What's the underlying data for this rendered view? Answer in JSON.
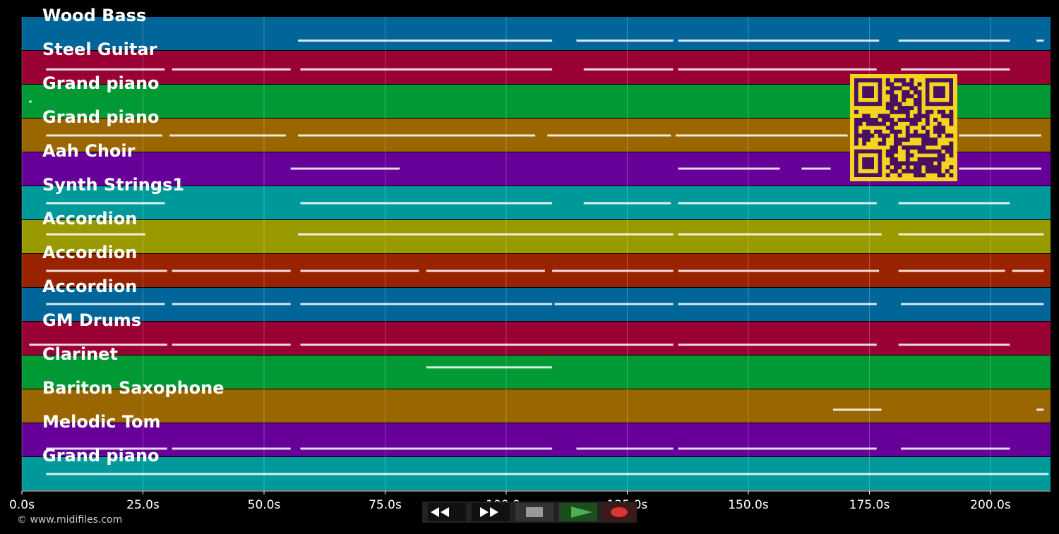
{
  "chart_data": {
    "type": "pianoroll",
    "xlim": [
      0,
      212.4
    ],
    "xticks": [
      {
        "value": 0,
        "label": "0.0s"
      },
      {
        "value": 25,
        "label": "25.0s"
      },
      {
        "value": 50,
        "label": "50.0s"
      },
      {
        "value": 75,
        "label": "75.0s"
      },
      {
        "value": 100,
        "label": "100.0s"
      },
      {
        "value": 125,
        "label": "125.0s"
      },
      {
        "value": 150,
        "label": "150.0s"
      },
      {
        "value": 175,
        "label": "175.0s"
      },
      {
        "value": 200,
        "label": "200.0s"
      }
    ],
    "grid": true,
    "tracks": [
      {
        "name": "Wood Bass",
        "color": "#006699",
        "segments": [
          [
            57,
            109.5
          ],
          [
            114.5,
            134.5
          ],
          [
            135.5,
            177
          ],
          [
            181,
            204
          ],
          [
            209.5,
            211
          ]
        ]
      },
      {
        "name": "Steel Guitar",
        "color": "#990033",
        "segments": [
          [
            5,
            29.5
          ],
          [
            31,
            55.5
          ],
          [
            57.5,
            109.5
          ],
          [
            116,
            134.5
          ],
          [
            135.5,
            176.5
          ],
          [
            181.5,
            204
          ]
        ]
      },
      {
        "name": "Grand piano",
        "color": "#009933",
        "segments": [
          [
            1.5,
            2
          ]
        ]
      },
      {
        "name": "Grand piano",
        "color": "#996600",
        "segments": [
          [
            5,
            29
          ],
          [
            30.5,
            54.5
          ],
          [
            57,
            106
          ],
          [
            108.5,
            134
          ],
          [
            135,
            170.5
          ],
          [
            193.5,
            210.5
          ]
        ]
      },
      {
        "name": "Aah Choir",
        "color": "#660099",
        "segments": [
          [
            55.5,
            78
          ],
          [
            135.5,
            156.5
          ],
          [
            161,
            167
          ],
          [
            193.5,
            210.5
          ]
        ]
      },
      {
        "name": "Synth Strings1",
        "color": "#009999",
        "segments": [
          [
            5,
            29.5
          ],
          [
            57.5,
            109.5
          ],
          [
            116,
            134
          ],
          [
            135.5,
            176.5
          ],
          [
            181,
            204
          ]
        ]
      },
      {
        "name": "Accordion",
        "color": "#999900",
        "segments": [
          [
            5,
            25.5
          ],
          [
            57,
            134.5
          ],
          [
            135.5,
            177.5
          ],
          [
            181,
            211
          ]
        ]
      },
      {
        "name": "Accordion",
        "color": "#992200",
        "segments": [
          [
            5,
            30
          ],
          [
            31,
            55.5
          ],
          [
            57.5,
            82
          ],
          [
            83.5,
            108
          ],
          [
            109.5,
            134.5
          ],
          [
            135.5,
            177
          ],
          [
            181,
            203
          ],
          [
            204.5,
            211
          ]
        ]
      },
      {
        "name": "Accordion",
        "color": "#006699",
        "segments": [
          [
            5,
            29.5
          ],
          [
            31,
            55.5
          ],
          [
            57.5,
            109.5
          ],
          [
            110,
            134.5
          ],
          [
            135.5,
            176.5
          ],
          [
            181.5,
            211
          ]
        ]
      },
      {
        "name": "GM Drums",
        "color": "#990033",
        "segments": [
          [
            1.5,
            30
          ],
          [
            31,
            55.5
          ],
          [
            57.5,
            134.5
          ],
          [
            135.5,
            176.5
          ],
          [
            181,
            204
          ]
        ]
      },
      {
        "name": "Clarinet",
        "color": "#009933",
        "segments": [
          [
            83.5,
            109.5
          ]
        ]
      },
      {
        "name": "Bariton Saxophone",
        "color": "#996600",
        "segments": [
          [
            167.5,
            177.5
          ],
          [
            209.5,
            211
          ]
        ]
      },
      {
        "name": "Melodic Tom",
        "color": "#660099",
        "segments": [
          [
            5,
            30
          ],
          [
            31,
            55.5
          ],
          [
            57.5,
            109.5
          ],
          [
            114.5,
            134.5
          ],
          [
            135.5,
            176.5
          ],
          [
            181.5,
            204
          ]
        ]
      },
      {
        "name": "Grand piano",
        "color": "#009999",
        "segments": [
          [
            5,
            212
          ]
        ]
      }
    ]
  },
  "footer": {
    "copyright": "© www.midifiles.com"
  }
}
